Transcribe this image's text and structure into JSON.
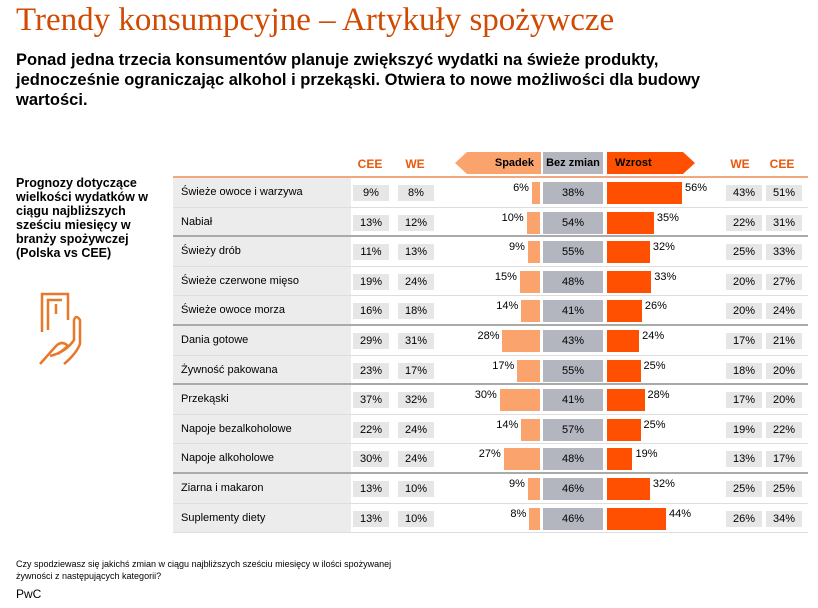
{
  "title": "Trendy konsumpcyjne – Artykuły spożywcze",
  "subtitle": "Ponad jedna trzecia konsumentów planuje zwiększyć wydatki na świeże produkty, jednocześnie ograniczając alkohol i przekąski. Otwiera to nowe możliwości dla budowy wartości.",
  "side_text": "Prognozy dotyczące wielkości wydatków w ciągu najbliższych sześciu miesięcy w branży spożywczej (Polska vs CEE)",
  "footnote": "Czy spodziewasz się jakichś zmian w ciągu najbliższych sześciu miesięcy w ilości spożywanej żywności z następujących kategorii?",
  "brand": "PwC",
  "colors": {
    "decrease": "#fba36d",
    "nochange": "#b3b6bf",
    "increase": "#fe5000",
    "accent": "#d04a02"
  },
  "chart_data": {
    "type": "bar",
    "headers": {
      "cee_left": "CEE",
      "we_left": "WE",
      "decrease": "Spadek",
      "nochange": "Bez zmian",
      "increase": "Wzrost",
      "we_right": "WE",
      "cee_right": "CEE"
    },
    "categories": [
      "Świeże owoce i warzywa",
      "Nabiał",
      "Świeży drób",
      "Świeże czerwone mięso",
      "Świeże owoce morza",
      "Dania gotowe",
      "Żywność pakowana",
      "Przekąski",
      "Napoje bezalkoholowe",
      "Napoje alkoholowe",
      "Ziarna i makaron",
      "Suplementy diety"
    ],
    "group_breaks_after": [
      1,
      4,
      6,
      9
    ],
    "series": [
      {
        "name": "CEE Spadek",
        "values": [
          9,
          13,
          11,
          19,
          16,
          29,
          23,
          37,
          22,
          30,
          13,
          13
        ]
      },
      {
        "name": "WE Spadek",
        "values": [
          8,
          12,
          13,
          24,
          18,
          31,
          17,
          32,
          24,
          24,
          10,
          10
        ]
      },
      {
        "name": "Spadek",
        "values": [
          6,
          10,
          9,
          15,
          14,
          28,
          17,
          30,
          14,
          27,
          9,
          8
        ]
      },
      {
        "name": "Bez zmian",
        "values": [
          38,
          54,
          55,
          48,
          41,
          43,
          55,
          41,
          57,
          48,
          46,
          46
        ]
      },
      {
        "name": "Wzrost",
        "values": [
          56,
          35,
          32,
          33,
          26,
          24,
          25,
          28,
          25,
          19,
          32,
          44
        ]
      },
      {
        "name": "WE Wzrost",
        "values": [
          43,
          22,
          25,
          20,
          20,
          17,
          18,
          17,
          19,
          13,
          25,
          26
        ]
      },
      {
        "name": "CEE Wzrost",
        "values": [
          51,
          31,
          33,
          27,
          24,
          21,
          20,
          20,
          22,
          17,
          25,
          34
        ]
      }
    ],
    "unit": "%"
  }
}
